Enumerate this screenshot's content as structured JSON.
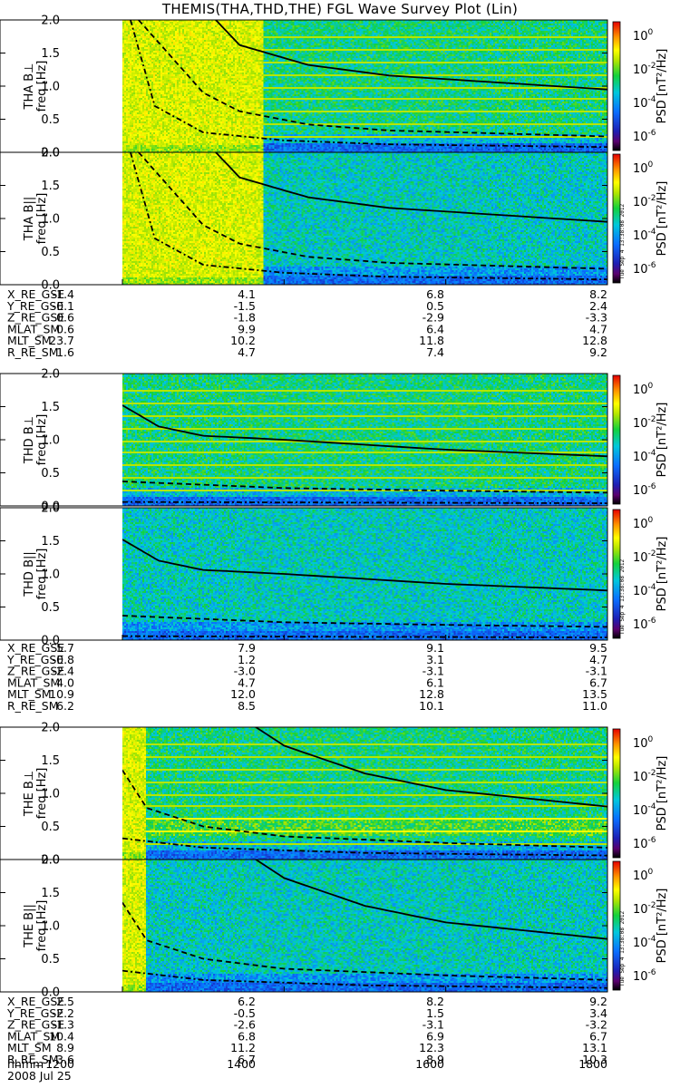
{
  "title": "THEMIS(THA,THD,THE) FGL Wave Survey Plot (Lin)",
  "colorbar": {
    "label_prefix": "PSD",
    "label_unit": "[nT²/Hz]",
    "ticks": [
      {
        "base": "10",
        "exp": "0"
      },
      {
        "base": "10",
        "exp": "-2"
      },
      {
        "base": "10",
        "exp": "-4"
      },
      {
        "base": "10",
        "exp": "-6"
      }
    ]
  },
  "ylabel_freq": "freq [Hz]",
  "yticks": [
    "0.0",
    "0.5",
    "1.0",
    "1.5",
    "2.0"
  ],
  "stamp": "Tue Sep  4 13:38:08 2012",
  "groups": [
    {
      "panels": [
        {
          "label": "THA B⊥",
          "data_start": 0.0,
          "hot_end": 0.29,
          "cut_end": 0.29,
          "solid": 0.73,
          "solid_clip": 0.47,
          "dash": 0.4,
          "dashdot": 0.22
        },
        {
          "label": "THA B||",
          "data_start": 0.0,
          "hot_end": 0.29,
          "cut_end": 0.29,
          "solid": 0.73,
          "solid_clip": 0.47,
          "dash": 0.4,
          "dashdot": 0.22
        }
      ],
      "ephemeris": {
        "labels": [
          "X_RE_GSE",
          "Y_RE_GSE",
          "Z_RE_GSE",
          "MLAT_SM",
          "MLT_SM",
          "R_RE_SM"
        ],
        "columns": [
          [
            "-1.4",
            "-0.1",
            "0.6",
            "0.6",
            "23.7",
            "1.6"
          ],
          [
            "4.1",
            "-1.5",
            "-1.8",
            "9.9",
            "10.2",
            "4.7"
          ],
          [
            "6.8",
            "0.5",
            "-2.9",
            "6.4",
            "11.8",
            "7.4"
          ],
          [
            "8.2",
            "2.4",
            "-3.3",
            "4.7",
            "12.8",
            "9.2"
          ]
        ]
      }
    },
    {
      "panels": [
        {
          "label": "THD B⊥",
          "data_start": 0.0,
          "hot_end": 0.0,
          "cut_end": 0.0,
          "solid": 0.0,
          "solid_clip": 0.0,
          "dash": 0.0,
          "dashdot": 0.0
        },
        {
          "label": "THD B||",
          "data_start": 0.0,
          "hot_end": 0.0,
          "cut_end": 0.0,
          "solid": 0.0,
          "solid_clip": 0.0,
          "dash": 0.0,
          "dashdot": 0.0
        }
      ],
      "ephemeris": {
        "labels": [
          "X_RE_GSE",
          "Y_RE_GSE",
          "Z_RE_GSE",
          "MLAT_SM",
          "MLT_SM",
          "R_RE_SM"
        ],
        "columns": [
          [
            "5.7",
            "-0.8",
            "-2.4",
            "4.0",
            "10.9",
            "6.2"
          ],
          [
            "7.9",
            "1.2",
            "-3.0",
            "4.7",
            "12.0",
            "8.5"
          ],
          [
            "9.1",
            "3.1",
            "-3.1",
            "6.1",
            "12.8",
            "10.1"
          ],
          [
            "9.5",
            "4.7",
            "-3.1",
            "6.7",
            "13.5",
            "11.0"
          ]
        ]
      }
    },
    {
      "panels": [
        {
          "label": "THE B⊥",
          "data_start": 0.0,
          "hot_end": 0.05,
          "cut_end": 0.05,
          "solid": 0.0,
          "solid_clip": 0.0,
          "dash": 0.0,
          "dashdot": 0.0
        },
        {
          "label": "THE B||",
          "data_start": 0.0,
          "hot_end": 0.05,
          "cut_end": 0.05,
          "solid": 0.0,
          "solid_clip": 0.0,
          "dash": 0.0,
          "dashdot": 0.0
        }
      ],
      "ephemeris": {
        "labels": [
          "X_RE_GSE",
          "Y_RE_GSE",
          "Z_RE_GSE",
          "MLAT_SM",
          "MLT_SM",
          "R_RE_SM"
        ],
        "columns": [
          [
            "2.5",
            "-2.2",
            "-1.3",
            "10.4",
            "8.9",
            "3.6"
          ],
          [
            "6.2",
            "-0.5",
            "-2.6",
            "6.8",
            "11.2",
            "6.7"
          ],
          [
            "8.2",
            "1.5",
            "-3.1",
            "6.9",
            "12.3",
            "8.9"
          ],
          [
            "9.2",
            "3.4",
            "-3.2",
            "6.7",
            "13.1",
            "10.3"
          ]
        ]
      }
    }
  ],
  "time_axis": {
    "label": "hhmm",
    "date": "2008 Jul 25",
    "ticks": [
      "1200",
      "1400",
      "1600",
      "1800"
    ]
  },
  "chart_data": {
    "type": "heatmap",
    "title": "THEMIS(THA,THD,THE) FGL Wave Survey Plot (Lin)",
    "xlabel": "hhmm",
    "ylabel": "freq [Hz]",
    "x_ticks": [
      "1200",
      "1400",
      "1600",
      "1800"
    ],
    "ylim": [
      0.0,
      2.0
    ],
    "y_ticks": [
      0.0,
      0.5,
      1.0,
      1.5,
      2.0
    ],
    "colorbar_range_nT2_per_Hz": [
      1e-06,
      10
    ],
    "colorbar_scale": "log",
    "panels": [
      "THA B⊥",
      "THA B||",
      "THD B⊥",
      "THD B||",
      "THE B⊥",
      "THE B||"
    ],
    "overlay_curves": {
      "THA": {
        "solid_fg_hz": [
          [
            1300,
            2.2
          ],
          [
            1345,
            1.62
          ],
          [
            1430,
            1.32
          ],
          [
            1530,
            1.16
          ],
          [
            1800,
            0.95
          ]
        ],
        "dashed_hz": [
          [
            1220,
            2.0
          ],
          [
            1300,
            0.9
          ],
          [
            1345,
            0.62
          ],
          [
            1430,
            0.42
          ],
          [
            1530,
            0.33
          ],
          [
            1800,
            0.24
          ]
        ],
        "dashdot_hz": [
          [
            1210,
            2.0
          ],
          [
            1240,
            0.7
          ],
          [
            1300,
            0.3
          ],
          [
            1400,
            0.18
          ],
          [
            1530,
            0.12
          ],
          [
            1800,
            0.08
          ]
        ]
      },
      "THD": {
        "solid_fg_hz": [
          [
            1200,
            1.52
          ],
          [
            1245,
            1.2
          ],
          [
            1300,
            1.06
          ],
          [
            1400,
            1.0
          ],
          [
            1600,
            0.85
          ],
          [
            1800,
            0.75
          ]
        ],
        "dashed_hz": [
          [
            1200,
            0.37
          ],
          [
            1400,
            0.27
          ],
          [
            1600,
            0.23
          ],
          [
            1800,
            0.2
          ]
        ],
        "dashdot_hz": [
          [
            1200,
            0.06
          ],
          [
            1800,
            0.04
          ]
        ]
      },
      "THE": {
        "solid_fg_hz": [
          [
            1340,
            2.2
          ],
          [
            1400,
            1.72
          ],
          [
            1500,
            1.3
          ],
          [
            1600,
            1.05
          ],
          [
            1800,
            0.8
          ]
        ],
        "dashed_hz": [
          [
            1200,
            1.35
          ],
          [
            1230,
            0.78
          ],
          [
            1300,
            0.5
          ],
          [
            1400,
            0.35
          ],
          [
            1600,
            0.25
          ],
          [
            1800,
            0.18
          ]
        ],
        "dashdot_hz": [
          [
            1200,
            0.32
          ],
          [
            1300,
            0.18
          ],
          [
            1500,
            0.1
          ],
          [
            1800,
            0.06
          ]
        ]
      }
    }
  }
}
